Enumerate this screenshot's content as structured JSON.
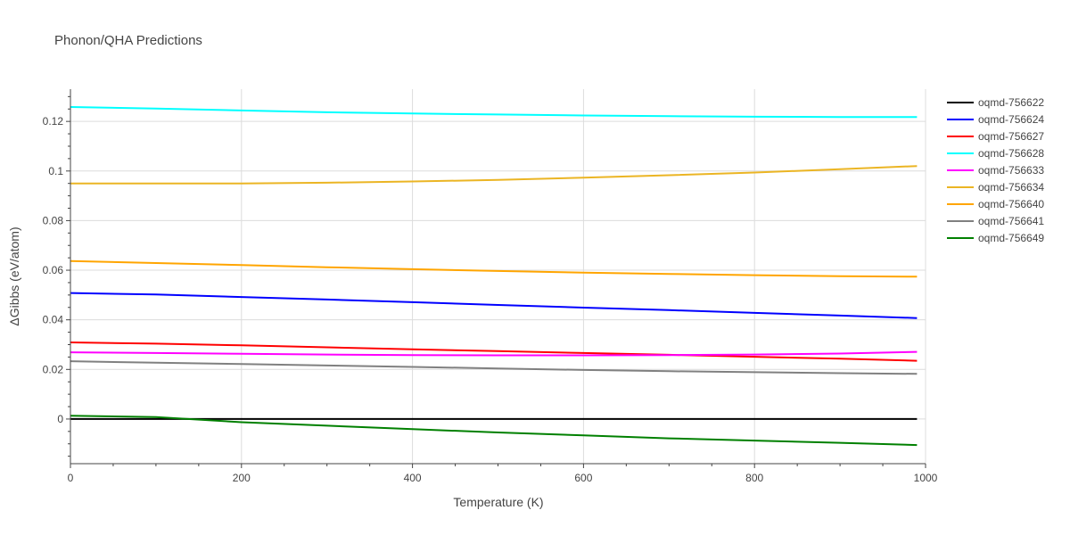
{
  "chart_data": {
    "type": "line",
    "title": "Phonon/QHA Predictions",
    "xlabel": "Temperature (K)",
    "ylabel": "ΔGibbs (eV/atom)",
    "xlim": [
      0,
      1000
    ],
    "ylim": [
      -0.018,
      0.133
    ],
    "x_ticks": [
      0,
      200,
      400,
      600,
      800,
      1000
    ],
    "x_tick_labels": [
      "0",
      "200",
      "400",
      "600",
      "800",
      "1000"
    ],
    "y_ticks": [
      0,
      0.02,
      0.04,
      0.06,
      0.08,
      0.1,
      0.12
    ],
    "y_tick_labels": [
      "0",
      "0.02",
      "0.04",
      "0.06",
      "0.08",
      "0.1",
      "0.12"
    ],
    "grid": true,
    "legend_position": "right",
    "x": [
      0,
      100,
      200,
      300,
      400,
      500,
      600,
      700,
      800,
      900,
      990
    ],
    "series": [
      {
        "name": "oqmd-756622",
        "color": "#000000",
        "values": [
          0,
          0,
          0,
          0,
          0,
          0,
          0,
          0,
          0,
          0,
          0
        ]
      },
      {
        "name": "oqmd-756624",
        "color": "#0000ff",
        "values": [
          0.0508,
          0.0502,
          0.0492,
          0.0482,
          0.0471,
          0.046,
          0.0449,
          0.0439,
          0.0428,
          0.0417,
          0.0407
        ]
      },
      {
        "name": "oqmd-756627",
        "color": "#ff0000",
        "values": [
          0.0309,
          0.0304,
          0.0297,
          0.0289,
          0.0281,
          0.0274,
          0.0266,
          0.0259,
          0.0251,
          0.0243,
          0.0235
        ]
      },
      {
        "name": "oqmd-756628",
        "color": "#00ffff",
        "values": [
          0.1258,
          0.1252,
          0.1244,
          0.1237,
          0.1232,
          0.1228,
          0.1224,
          0.1221,
          0.1219,
          0.1218,
          0.1218
        ]
      },
      {
        "name": "oqmd-756633",
        "color": "#ff00ff",
        "values": [
          0.0269,
          0.0266,
          0.0263,
          0.026,
          0.0258,
          0.0257,
          0.0257,
          0.0258,
          0.026,
          0.0264,
          0.0271
        ]
      },
      {
        "name": "oqmd-756634",
        "color": "#ebb524",
        "values": [
          0.095,
          0.095,
          0.095,
          0.0953,
          0.0958,
          0.0964,
          0.0973,
          0.0983,
          0.0994,
          0.1007,
          0.102
        ]
      },
      {
        "name": "oqmd-756640",
        "color": "#ffa500",
        "values": [
          0.0637,
          0.0629,
          0.0621,
          0.0612,
          0.0604,
          0.0597,
          0.059,
          0.0585,
          0.058,
          0.0576,
          0.0574
        ]
      },
      {
        "name": "oqmd-756641",
        "color": "#808080",
        "values": [
          0.0233,
          0.0227,
          0.0222,
          0.0216,
          0.021,
          0.0204,
          0.0198,
          0.0193,
          0.0189,
          0.0185,
          0.0182
        ]
      },
      {
        "name": "oqmd-756649",
        "color": "#008000",
        "values": [
          0.0013,
          0.0008,
          -0.0013,
          -0.0027,
          -0.0041,
          -0.0054,
          -0.0066,
          -0.0078,
          -0.0087,
          -0.0096,
          -0.0105
        ]
      }
    ]
  }
}
